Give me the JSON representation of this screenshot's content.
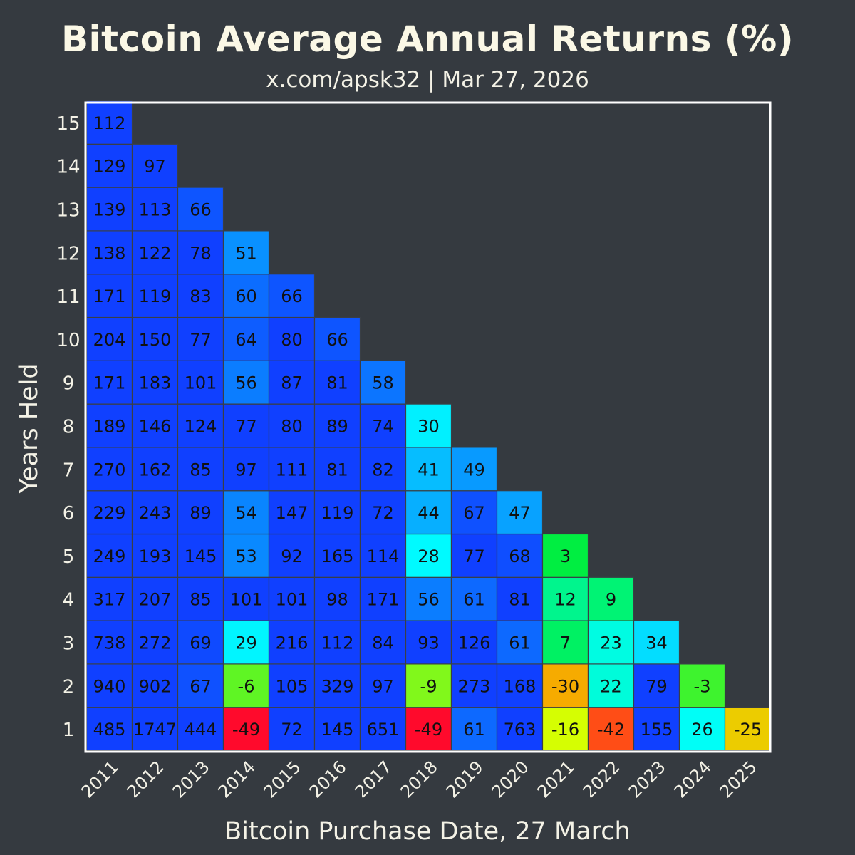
{
  "chart_data": {
    "type": "heatmap",
    "title": "Bitcoin Average Annual Returns (%)",
    "subtitle": "x.com/apsk32 | Mar 27, 2026",
    "xlabel": "Bitcoin Purchase Date, 27 March",
    "ylabel": "Years Held",
    "x": [
      "2011",
      "2012",
      "2013",
      "2014",
      "2015",
      "2016",
      "2017",
      "2018",
      "2019",
      "2020",
      "2021",
      "2022",
      "2023",
      "2024",
      "2025"
    ],
    "y": [
      "1",
      "2",
      "3",
      "4",
      "5",
      "6",
      "7",
      "8",
      "9",
      "10",
      "11",
      "12",
      "13",
      "14",
      "15"
    ],
    "values": [
      [
        485,
        940,
        738,
        317,
        249,
        229,
        270,
        189,
        171,
        204,
        171,
        138,
        139,
        129,
        112
      ],
      [
        1747,
        902,
        272,
        207,
        193,
        243,
        162,
        146,
        183,
        150,
        119,
        122,
        113,
        97
      ],
      [
        444,
        67,
        69,
        85,
        145,
        89,
        85,
        124,
        101,
        77,
        83,
        78,
        66
      ],
      [
        -49,
        -6,
        29,
        101,
        53,
        54,
        97,
        77,
        56,
        64,
        60,
        51
      ],
      [
        72,
        105,
        216,
        101,
        92,
        147,
        111,
        80,
        87,
        80,
        66
      ],
      [
        145,
        329,
        112,
        98,
        165,
        119,
        81,
        89,
        81,
        66
      ],
      [
        651,
        97,
        84,
        171,
        114,
        72,
        82,
        74,
        58
      ],
      [
        -49,
        -9,
        93,
        56,
        28,
        44,
        41,
        30
      ],
      [
        61,
        273,
        126,
        61,
        77,
        67,
        49
      ],
      [
        763,
        168,
        61,
        81,
        68,
        47
      ],
      [
        -16,
        -30,
        7,
        12,
        3
      ],
      [
        -42,
        22,
        23,
        9
      ],
      [
        155,
        79,
        34
      ],
      [
        26,
        -3
      ],
      [
        -25
      ]
    ],
    "values_layout": "values[i][j] = return for purchase year x[i] held for y[j] years",
    "color_scale": [
      "#ff0030",
      "#ff8c00",
      "#ddff00",
      "#00ee40",
      "#00ffff",
      "#1040ff"
    ],
    "grid": false,
    "legend": "none"
  }
}
